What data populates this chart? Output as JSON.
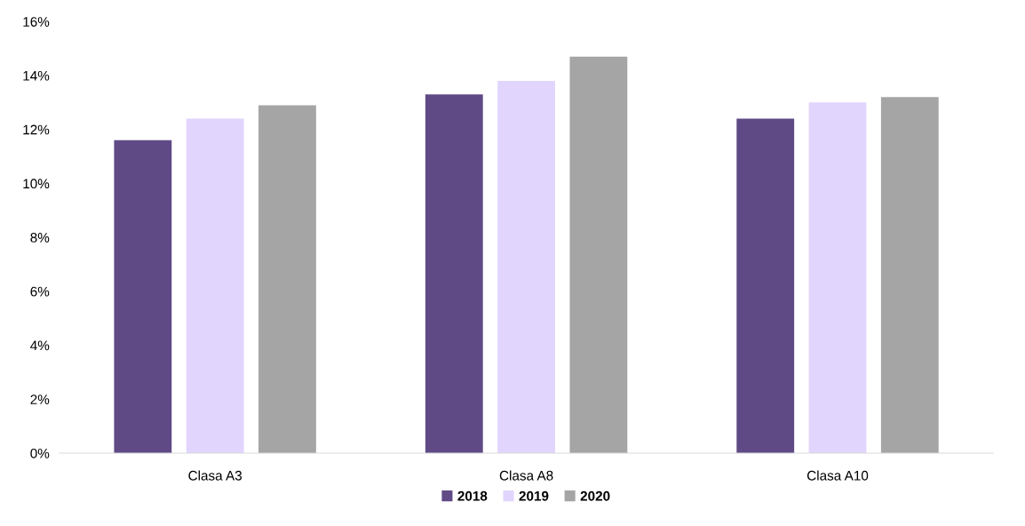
{
  "chart_data": {
    "type": "bar",
    "categories": [
      "Clasa A3",
      "Clasa A8",
      "Clasa A10"
    ],
    "series": [
      {
        "name": "2018",
        "color": "#604a86",
        "values": [
          11.6,
          13.3,
          12.4
        ]
      },
      {
        "name": "2019",
        "color": "#e2d5fd",
        "values": [
          12.4,
          13.8,
          13.0
        ]
      },
      {
        "name": "2020",
        "color": "#a5a5a5",
        "values": [
          12.9,
          14.7,
          13.2
        ]
      }
    ],
    "ylim": [
      0,
      16
    ],
    "yticks": [
      {
        "value": 0,
        "label": "0%"
      },
      {
        "value": 2,
        "label": "2%"
      },
      {
        "value": 4,
        "label": "4%"
      },
      {
        "value": 6,
        "label": "6%"
      },
      {
        "value": 8,
        "label": "8%"
      },
      {
        "value": 10,
        "label": "10%"
      },
      {
        "value": 12,
        "label": "12%"
      },
      {
        "value": 14,
        "label": "14%"
      },
      {
        "value": 16,
        "label": "16%"
      }
    ],
    "grid": false,
    "legend": "bottom"
  }
}
